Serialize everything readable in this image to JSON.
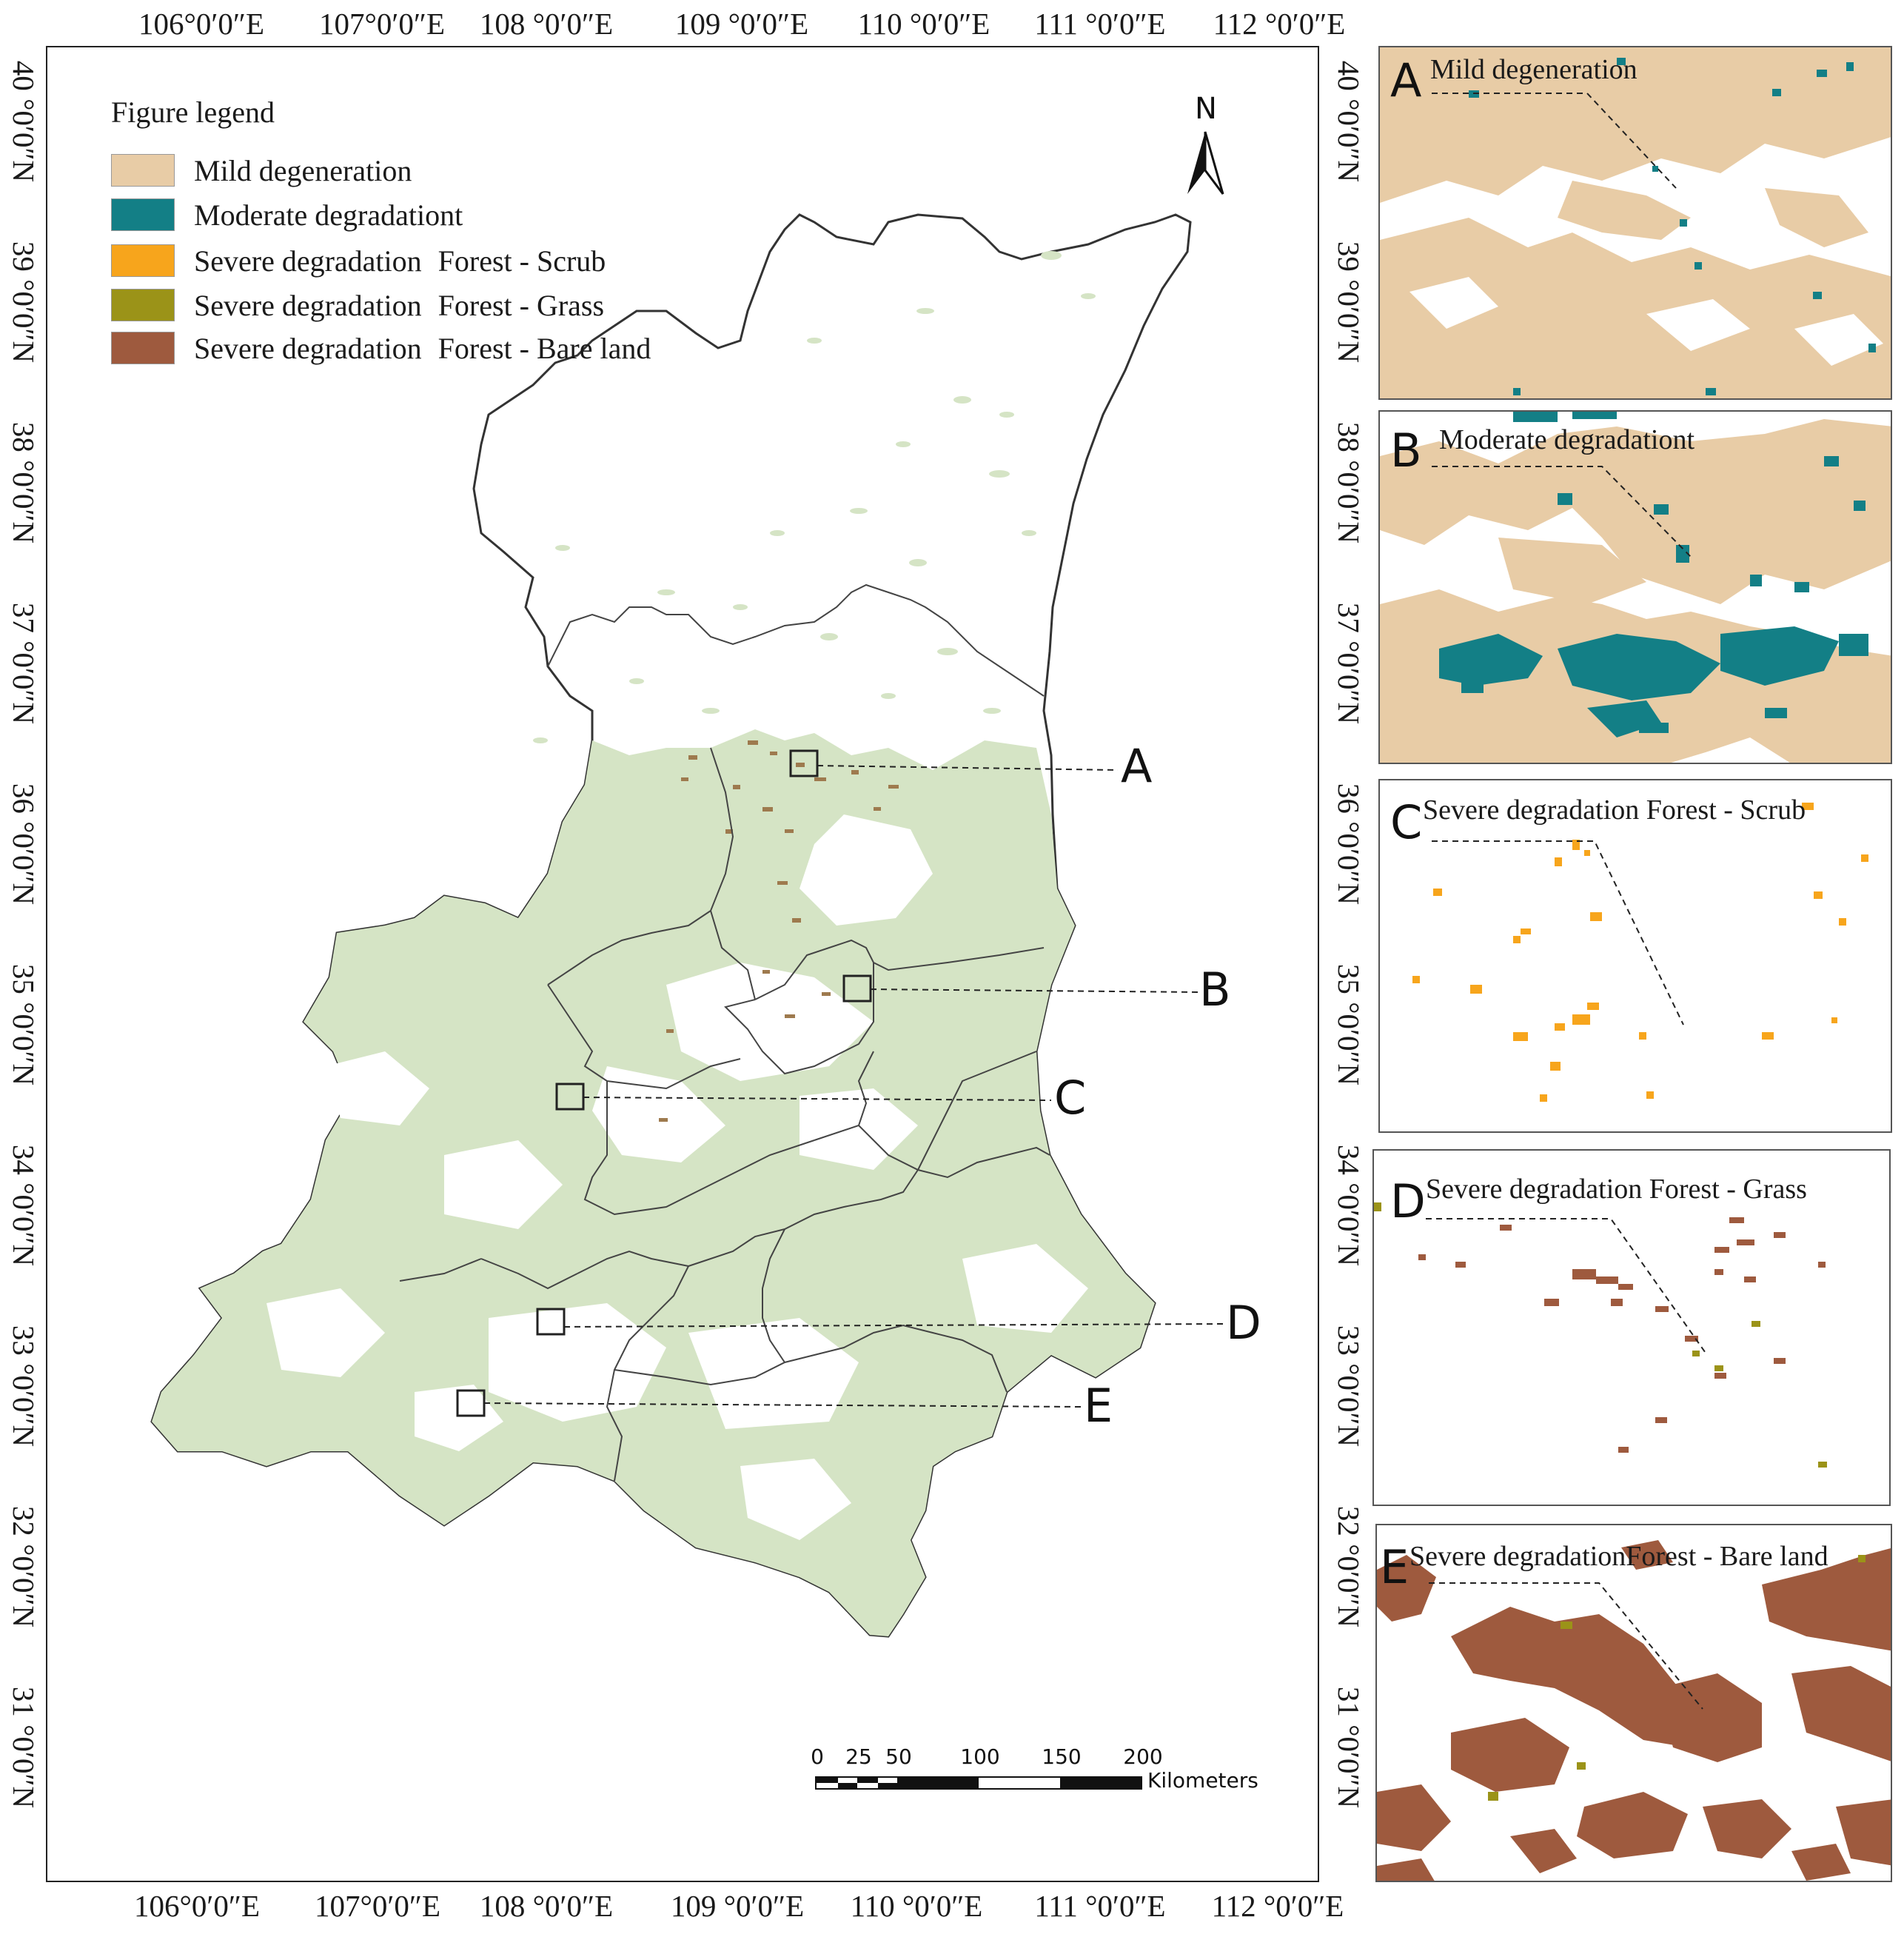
{
  "axes": {
    "lon_labels": [
      "106°0′0″E",
      "107°0′0″E",
      "108 °0′0″E",
      "109 °0′0″E",
      "110 °0′0″E",
      "111 °0′0″E",
      "112 °0′0″E"
    ],
    "lat_labels": [
      "40 °0′0″N",
      "39 °0′0″N",
      "38 °0′0″N",
      "37 °0′0″N",
      "36 °0′0″N",
      "35 °0′0″N",
      "34 °0′0″N",
      "33 °0′0″N",
      "32 °0′0″N",
      "31 °0′0″N"
    ]
  },
  "legend": {
    "title": "Figure legend",
    "items": [
      {
        "label": "Mild degeneration",
        "sub": "",
        "color": "#e8cca6"
      },
      {
        "label": "Moderate degradationt",
        "sub": "",
        "color": "#137f86"
      },
      {
        "label": "Severe degradation",
        "sub": "Forest - Scrub",
        "color": "#f7a51c"
      },
      {
        "label": "Severe degradation",
        "sub": "Forest - Grass",
        "color": "#9b9318"
      },
      {
        "label": "Severe degradation",
        "sub": "Forest - Bare land",
        "color": "#9e5a3e"
      }
    ]
  },
  "north_arrow": {
    "label": "N",
    "icon": "north-arrow-icon"
  },
  "colors": {
    "forest": "#d5e4c5",
    "boundary": "#333333",
    "mild": "#e8cca6",
    "moderate": "#137f86",
    "scrub": "#f7a51c",
    "grass": "#9b9318",
    "bare": "#9e5a3e"
  },
  "callouts": {
    "a": "A",
    "b": "B",
    "c": "C",
    "d": "D",
    "e": "E"
  },
  "panels": [
    {
      "letter": "A",
      "title": "Mild degeneration"
    },
    {
      "letter": "B",
      "title": "Moderate degradationt"
    },
    {
      "letter": "C",
      "title": "Severe degradation Forest - Scrub"
    },
    {
      "letter": "D",
      "title": "Severe degradation  Forest - Grass"
    },
    {
      "letter": "E",
      "title": "Severe degradationForest - Bare land"
    }
  ],
  "scale_bar": {
    "ticks": [
      "0",
      "25",
      "50",
      "100",
      "150",
      "200"
    ],
    "unit": "Kilometers"
  }
}
